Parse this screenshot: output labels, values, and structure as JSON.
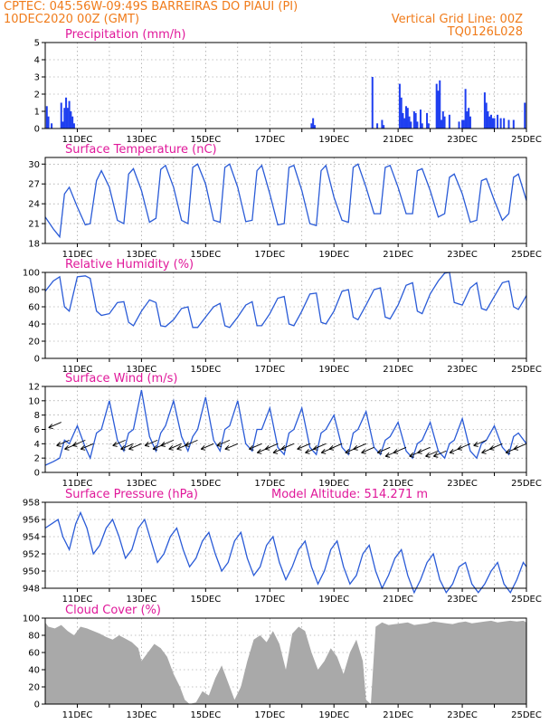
{
  "header": {
    "line1_left": "CPTEC:   045:56W-09:49S  BARREIRAS DO PIAUI (PI)",
    "line2_left": "10DEC2020 00Z (GMT)",
    "line2_right": "Vertical Grid Line: 00Z",
    "line3_right": "TQ0126L028"
  },
  "colors": {
    "line": "#2a5bd7",
    "bar": "#1f3ff0",
    "cloud": "#a9a9a9",
    "title": "#e0189a",
    "header": "#f07b1a"
  },
  "chart_data": [
    {
      "type": "bar",
      "title": "Precipitation (mm/h)",
      "ylim": [
        0,
        5
      ],
      "yticks": [
        0,
        1,
        2,
        3,
        4,
        5
      ],
      "xlim": [
        10,
        25
      ],
      "xticks": [
        "11DEC",
        "13DEC",
        "15DEC",
        "17DEC",
        "19DEC",
        "21DEC",
        "23DEC",
        "25DEC"
      ],
      "x": [
        10.05,
        10.1,
        10.2,
        10.5,
        10.55,
        10.6,
        10.65,
        10.7,
        10.75,
        10.8,
        10.85,
        10.9,
        18.3,
        18.35,
        18.4,
        20.2,
        20.35,
        20.5,
        20.55,
        21.05,
        21.1,
        21.15,
        21.2,
        21.25,
        21.3,
        21.35,
        21.4,
        21.5,
        21.55,
        21.6,
        21.7,
        21.75,
        21.9,
        21.95,
        22.2,
        22.25,
        22.3,
        22.35,
        22.4,
        22.45,
        22.6,
        22.9,
        23.0,
        23.05,
        23.1,
        23.15,
        23.2,
        23.25,
        23.7,
        23.75,
        23.8,
        23.85,
        23.9,
        23.95,
        24.0,
        24.1,
        24.2,
        24.3,
        24.45,
        24.6,
        24.95
      ],
      "values": [
        1.3,
        0.7,
        0.3,
        1.5,
        0.4,
        1.2,
        1.8,
        1.2,
        1.6,
        1.0,
        0.7,
        0.3,
        0.3,
        0.6,
        0.2,
        3.0,
        0.3,
        0.5,
        0.2,
        2.6,
        1.8,
        0.9,
        0.6,
        1.3,
        1.2,
        0.7,
        0.4,
        1.0,
        0.9,
        0.4,
        1.1,
        0.3,
        0.9,
        0.3,
        2.6,
        2.2,
        2.8,
        0.5,
        1.0,
        0.7,
        0.8,
        0.4,
        0.5,
        0.5,
        2.3,
        1.0,
        1.2,
        0.7,
        2.1,
        1.5,
        1.0,
        0.7,
        0.8,
        0.6,
        0.6,
        0.8,
        0.6,
        0.6,
        0.5,
        0.5,
        1.5
      ]
    },
    {
      "type": "line",
      "title": "Surface Temperature (nC)",
      "ylim": [
        18,
        31
      ],
      "yticks": [
        18,
        21,
        24,
        27,
        30
      ],
      "xlim": [
        10,
        25
      ],
      "xticks": [
        "11DEC",
        "13DEC",
        "15DEC",
        "17DEC",
        "19DEC",
        "21DEC",
        "23DEC",
        "25DEC"
      ],
      "x": [
        10.0,
        10.25,
        10.45,
        10.6,
        10.75,
        11.0,
        11.25,
        11.4,
        11.6,
        11.75,
        12.0,
        12.25,
        12.45,
        12.6,
        12.75,
        13.0,
        13.25,
        13.45,
        13.6,
        13.75,
        14.0,
        14.25,
        14.45,
        14.6,
        14.75,
        15.0,
        15.25,
        15.45,
        15.6,
        15.75,
        16.0,
        16.25,
        16.45,
        16.6,
        16.75,
        17.0,
        17.25,
        17.45,
        17.6,
        17.75,
        18.0,
        18.25,
        18.45,
        18.6,
        18.75,
        19.0,
        19.25,
        19.45,
        19.6,
        19.75,
        20.0,
        20.25,
        20.45,
        20.6,
        20.75,
        21.0,
        21.25,
        21.45,
        21.6,
        21.75,
        22.0,
        22.25,
        22.45,
        22.6,
        22.75,
        23.0,
        23.25,
        23.45,
        23.6,
        23.75,
        24.0,
        24.25,
        24.45,
        24.6,
        24.75,
        25.0
      ],
      "values": [
        22.0,
        20.2,
        19.0,
        25.5,
        26.5,
        23.5,
        20.8,
        21.0,
        27.5,
        29.0,
        26.5,
        21.5,
        21.0,
        28.5,
        29.3,
        26.0,
        21.2,
        21.8,
        29.2,
        29.8,
        26.5,
        21.5,
        21.0,
        29.5,
        30.0,
        27.0,
        21.5,
        21.2,
        29.5,
        30.0,
        26.5,
        21.3,
        21.5,
        29.0,
        29.8,
        25.5,
        20.8,
        21.0,
        29.5,
        29.8,
        26.0,
        21.0,
        20.7,
        29.0,
        29.8,
        25.0,
        21.5,
        21.2,
        29.5,
        30.0,
        26.5,
        22.5,
        22.5,
        29.5,
        29.8,
        26.5,
        22.5,
        22.5,
        29.0,
        29.3,
        26.0,
        22.0,
        22.5,
        28.0,
        28.5,
        25.5,
        21.2,
        21.5,
        27.5,
        27.8,
        24.5,
        21.5,
        22.5,
        28.0,
        28.5,
        24.5
      ]
    },
    {
      "type": "line",
      "title": "Relative Humidity (%)",
      "ylim": [
        0,
        100
      ],
      "yticks": [
        0,
        20,
        40,
        60,
        80,
        100
      ],
      "xlim": [
        10,
        25
      ],
      "xticks": [
        "11DEC",
        "13DEC",
        "15DEC",
        "17DEC",
        "19DEC",
        "21DEC",
        "23DEC",
        "25DEC"
      ],
      "x": [
        10.0,
        10.25,
        10.45,
        10.6,
        10.75,
        11.0,
        11.25,
        11.4,
        11.6,
        11.75,
        12.0,
        12.25,
        12.45,
        12.6,
        12.75,
        13.0,
        13.25,
        13.45,
        13.6,
        13.75,
        14.0,
        14.25,
        14.45,
        14.6,
        14.75,
        15.0,
        15.25,
        15.45,
        15.6,
        15.75,
        16.0,
        16.25,
        16.45,
        16.6,
        16.75,
        17.0,
        17.25,
        17.45,
        17.6,
        17.75,
        18.0,
        18.25,
        18.45,
        18.6,
        18.75,
        19.0,
        19.25,
        19.45,
        19.6,
        19.75,
        20.0,
        20.25,
        20.45,
        20.6,
        20.75,
        21.0,
        21.25,
        21.45,
        21.6,
        21.75,
        22.0,
        22.25,
        22.45,
        22.6,
        22.75,
        23.0,
        23.25,
        23.45,
        23.6,
        23.75,
        24.0,
        24.25,
        24.45,
        24.6,
        24.75,
        25.0
      ],
      "values": [
        78,
        90,
        95,
        60,
        55,
        95,
        96,
        93,
        55,
        50,
        52,
        65,
        66,
        42,
        38,
        55,
        68,
        65,
        38,
        37,
        45,
        58,
        60,
        36,
        36,
        48,
        60,
        64,
        38,
        36,
        48,
        62,
        66,
        38,
        38,
        52,
        70,
        72,
        40,
        38,
        55,
        75,
        76,
        42,
        40,
        55,
        78,
        80,
        48,
        45,
        62,
        80,
        82,
        48,
        46,
        62,
        85,
        88,
        55,
        52,
        75,
        90,
        99,
        100,
        65,
        62,
        82,
        88,
        58,
        56,
        72,
        88,
        90,
        60,
        57,
        73
      ]
    },
    {
      "type": "line",
      "title": "Surface Wind (m/s)",
      "ylim": [
        0,
        12
      ],
      "yticks": [
        0,
        2,
        4,
        6,
        8,
        10,
        12
      ],
      "xlim": [
        10,
        25
      ],
      "xticks": [
        "11DEC",
        "13DEC",
        "15DEC",
        "17DEC",
        "19DEC",
        "21DEC",
        "23DEC",
        "25DEC"
      ],
      "x": [
        10.0,
        10.25,
        10.45,
        10.6,
        10.75,
        11.0,
        11.25,
        11.4,
        11.6,
        11.75,
        12.0,
        12.25,
        12.45,
        12.6,
        12.75,
        13.0,
        13.25,
        13.45,
        13.6,
        13.75,
        14.0,
        14.25,
        14.45,
        14.6,
        14.75,
        15.0,
        15.25,
        15.45,
        15.6,
        15.75,
        16.0,
        16.25,
        16.45,
        16.6,
        16.75,
        17.0,
        17.25,
        17.45,
        17.6,
        17.75,
        18.0,
        18.25,
        18.45,
        18.6,
        18.75,
        19.0,
        19.25,
        19.45,
        19.6,
        19.75,
        20.0,
        20.25,
        20.45,
        20.6,
        20.75,
        21.0,
        21.25,
        21.45,
        21.6,
        21.75,
        22.0,
        22.25,
        22.45,
        22.6,
        22.75,
        23.0,
        23.25,
        23.45,
        23.6,
        23.75,
        24.0,
        24.25,
        24.45,
        24.6,
        24.75,
        25.0
      ],
      "values": [
        1.0,
        1.5,
        2.0,
        4.5,
        4.0,
        6.5,
        3.5,
        2.0,
        5.5,
        6.0,
        10.0,
        4.5,
        3.0,
        5.5,
        6.0,
        11.5,
        5.0,
        3.0,
        5.5,
        6.5,
        10.0,
        5.0,
        3.0,
        5.0,
        6.0,
        10.5,
        4.5,
        3.0,
        6.0,
        6.5,
        10.0,
        4.0,
        3.0,
        6.0,
        6.0,
        9.0,
        3.5,
        2.5,
        5.5,
        6.0,
        9.0,
        3.5,
        2.5,
        5.5,
        6.0,
        8.0,
        3.5,
        2.5,
        5.5,
        6.0,
        8.5,
        3.5,
        2.5,
        4.5,
        5.0,
        7.0,
        3.0,
        2.0,
        4.0,
        4.5,
        7.0,
        3.0,
        2.0,
        4.0,
        4.5,
        7.5,
        3.0,
        2.0,
        4.0,
        4.5,
        6.5,
        3.5,
        2.5,
        5.0,
        5.5,
        4.0
      ],
      "vectors": {
        "x": [
          10.5,
          10.75,
          11.0,
          11.25,
          11.5,
          12.5,
          12.75,
          13.0,
          13.5,
          13.75,
          14.0,
          14.25,
          14.5,
          14.75,
          15.25,
          15.75,
          16.0,
          16.75,
          17.0,
          17.25,
          17.5,
          17.75,
          18.25,
          18.5,
          18.75,
          19.0,
          19.25,
          19.75,
          20.0,
          20.25,
          20.75,
          21.0,
          21.25,
          21.75,
          22.0,
          22.25,
          22.5,
          23.0,
          23.25,
          23.75,
          24.0,
          24.25,
          24.75,
          25.0
        ],
        "y": [
          7.0,
          4.5,
          4.0,
          4.5,
          4.0,
          4.5,
          4.0,
          4.0,
          4.5,
          4.0,
          4.5,
          4.0,
          4.0,
          4.5,
          4.0,
          4.5,
          4.0,
          4.0,
          3.5,
          4.0,
          3.5,
          4.0,
          4.0,
          3.5,
          4.0,
          3.5,
          4.0,
          3.5,
          4.0,
          3.5,
          3.5,
          3.0,
          3.5,
          3.0,
          3.5,
          3.0,
          3.0,
          3.5,
          4.0,
          4.5,
          3.5,
          4.0,
          3.5,
          4.0
        ]
      }
    },
    {
      "type": "line",
      "title": "Surface Pressure (hPa)",
      "annotation": "Model Altitude: 514.271 m",
      "ylim": [
        948,
        958
      ],
      "yticks": [
        948,
        950,
        952,
        954,
        956,
        958
      ],
      "xlim": [
        10,
        25
      ],
      "xticks": [
        "11DEC",
        "13DEC",
        "15DEC",
        "17DEC",
        "19DEC",
        "21DEC",
        "23DEC",
        "25DEC"
      ],
      "x": [
        10.0,
        10.2,
        10.4,
        10.55,
        10.75,
        10.95,
        11.1,
        11.3,
        11.5,
        11.7,
        11.9,
        12.1,
        12.3,
        12.5,
        12.7,
        12.9,
        13.1,
        13.3,
        13.5,
        13.7,
        13.9,
        14.1,
        14.3,
        14.5,
        14.7,
        14.9,
        15.1,
        15.3,
        15.5,
        15.7,
        15.9,
        16.1,
        16.3,
        16.5,
        16.7,
        16.9,
        17.1,
        17.3,
        17.5,
        17.7,
        17.9,
        18.1,
        18.3,
        18.5,
        18.7,
        18.9,
        19.1,
        19.3,
        19.5,
        19.7,
        19.9,
        20.1,
        20.3,
        20.5,
        20.7,
        20.9,
        21.1,
        21.3,
        21.5,
        21.7,
        21.9,
        22.1,
        22.3,
        22.5,
        22.7,
        22.9,
        23.1,
        23.3,
        23.5,
        23.7,
        23.9,
        24.1,
        24.3,
        24.5,
        24.7,
        24.9,
        25.0
      ],
      "values": [
        955.0,
        955.5,
        956.0,
        954.0,
        952.5,
        955.5,
        956.8,
        955.0,
        952.0,
        953.0,
        955.0,
        956.0,
        954.0,
        951.5,
        952.5,
        955.0,
        956.0,
        953.5,
        951.0,
        952.0,
        954.0,
        955.0,
        952.5,
        950.5,
        951.5,
        953.5,
        954.5,
        952.0,
        950.0,
        951.0,
        953.5,
        954.5,
        951.5,
        949.5,
        950.5,
        953.0,
        954.0,
        951.0,
        949.0,
        950.5,
        952.5,
        953.5,
        950.5,
        948.5,
        950.0,
        952.5,
        953.5,
        950.5,
        948.5,
        949.5,
        952.0,
        953.0,
        950.0,
        948.0,
        949.5,
        951.5,
        952.5,
        949.5,
        947.5,
        949.0,
        951.0,
        952.0,
        949.0,
        947.5,
        948.5,
        950.5,
        951.0,
        948.5,
        947.5,
        948.5,
        950.0,
        951.0,
        948.5,
        947.5,
        949.0,
        951.0,
        950.5
      ]
    },
    {
      "type": "area",
      "title": "Cloud Cover (%)",
      "ylim": [
        0,
        100
      ],
      "yticks": [
        0,
        20,
        40,
        60,
        80,
        100
      ],
      "xlim": [
        10,
        25
      ],
      "xticks": [
        "11DEC",
        "13DEC",
        "15DEC",
        "17DEC",
        "19DEC",
        "21DEC",
        "23DEC",
        "25DEC"
      ],
      "x": [
        10.0,
        10.1,
        10.3,
        10.5,
        10.7,
        10.9,
        11.1,
        11.3,
        11.5,
        11.7,
        11.9,
        12.1,
        12.3,
        12.5,
        12.7,
        12.9,
        13.0,
        13.2,
        13.4,
        13.6,
        13.8,
        14.0,
        14.2,
        14.35,
        14.5,
        14.7,
        14.9,
        15.1,
        15.3,
        15.5,
        15.7,
        15.9,
        16.1,
        16.3,
        16.5,
        16.7,
        16.9,
        17.1,
        17.3,
        17.5,
        17.7,
        17.9,
        18.1,
        18.3,
        18.5,
        18.7,
        18.9,
        19.1,
        19.3,
        19.5,
        19.7,
        19.9,
        20.0,
        20.15,
        20.3,
        20.5,
        20.7,
        20.9,
        21.1,
        21.3,
        21.5,
        21.7,
        21.9,
        22.1,
        22.3,
        22.5,
        22.7,
        22.9,
        23.1,
        23.3,
        23.5,
        23.7,
        23.9,
        24.1,
        24.3,
        24.5,
        24.7,
        24.9,
        25.0
      ],
      "values": [
        95,
        90,
        88,
        92,
        85,
        80,
        90,
        88,
        85,
        82,
        78,
        75,
        80,
        76,
        72,
        65,
        50,
        60,
        70,
        65,
        55,
        35,
        20,
        5,
        0,
        2,
        15,
        10,
        30,
        45,
        25,
        5,
        20,
        50,
        75,
        80,
        72,
        85,
        70,
        40,
        82,
        90,
        85,
        60,
        40,
        50,
        65,
        55,
        35,
        60,
        75,
        50,
        5,
        0,
        90,
        95,
        92,
        93,
        94,
        95,
        92,
        93,
        94,
        96,
        95,
        94,
        93,
        95,
        96,
        94,
        95,
        96,
        97,
        95,
        96,
        97,
        96,
        97,
        95
      ]
    }
  ]
}
